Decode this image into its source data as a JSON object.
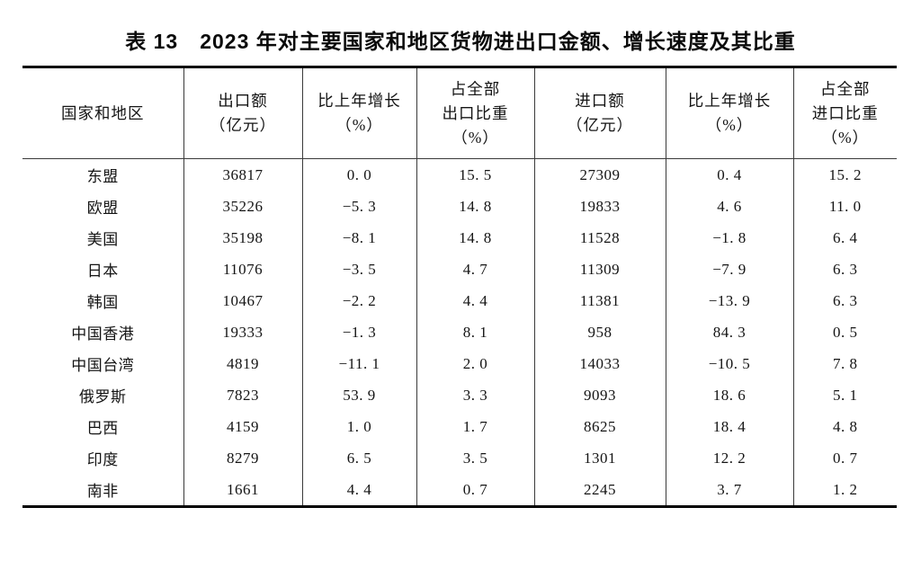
{
  "table": {
    "title": "表 13　2023 年对主要国家和地区货物进出口金额、增长速度及其比重",
    "columns": [
      {
        "id": "region",
        "lines": [
          "国家和地区"
        ]
      },
      {
        "id": "export_value",
        "lines": [
          "出口额",
          "（亿元）"
        ]
      },
      {
        "id": "export_growth",
        "lines": [
          "比上年增长",
          "（%）"
        ]
      },
      {
        "id": "export_share",
        "lines": [
          "占全部",
          "出口比重",
          "（%）"
        ]
      },
      {
        "id": "import_value",
        "lines": [
          "进口额",
          "（亿元）"
        ]
      },
      {
        "id": "import_growth",
        "lines": [
          "比上年增长",
          "（%）"
        ]
      },
      {
        "id": "import_share",
        "lines": [
          "占全部",
          "进口比重",
          "（%）"
        ]
      }
    ],
    "rows": [
      [
        "东盟",
        "36817",
        "0. 0",
        "15. 5",
        "27309",
        "0. 4",
        "15. 2"
      ],
      [
        "欧盟",
        "35226",
        "−5. 3",
        "14. 8",
        "19833",
        "4. 6",
        "11. 0"
      ],
      [
        "美国",
        "35198",
        "−8. 1",
        "14. 8",
        "11528",
        "−1. 8",
        "6. 4"
      ],
      [
        "日本",
        "11076",
        "−3. 5",
        "4. 7",
        "11309",
        "−7. 9",
        "6. 3"
      ],
      [
        "韩国",
        "10467",
        "−2. 2",
        "4. 4",
        "11381",
        "−13. 9",
        "6. 3"
      ],
      [
        "中国香港",
        "19333",
        "−1. 3",
        "8. 1",
        "958",
        "84. 3",
        "0. 5"
      ],
      [
        "中国台湾",
        "4819",
        "−11. 1",
        "2. 0",
        "14033",
        "−10. 5",
        "7. 8"
      ],
      [
        "俄罗斯",
        "7823",
        "53. 9",
        "3. 3",
        "9093",
        "18. 6",
        "5. 1"
      ],
      [
        "巴西",
        "4159",
        "1. 0",
        "1. 7",
        "8625",
        "18. 4",
        "4. 8"
      ],
      [
        "印度",
        "8279",
        "6. 5",
        "3. 5",
        "1301",
        "12. 2",
        "0. 7"
      ],
      [
        "南非",
        "1661",
        "4. 4",
        "0. 7",
        "2245",
        "3. 7",
        "1. 2"
      ]
    ]
  }
}
